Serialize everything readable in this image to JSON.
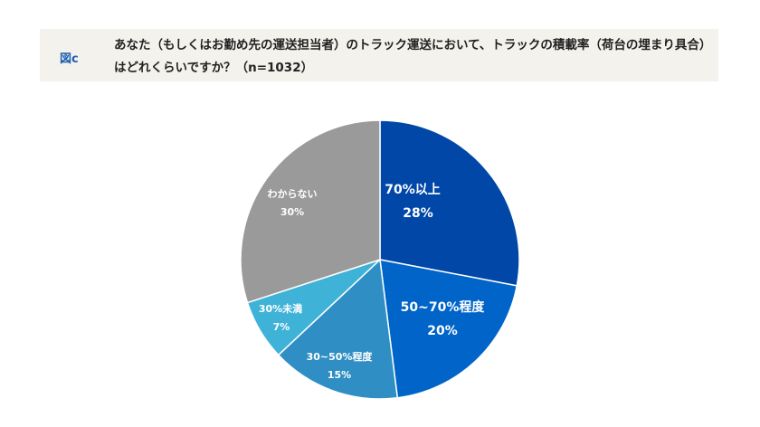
{
  "header": {
    "figure_label": "図c",
    "question": "あなた（もしくはお勤め先の運送担当者）のトラック運送において、トラックの積載率（荷台の埋まり具合）はどれくらいですか？（n=1032）"
  },
  "chart_data": {
    "type": "pie",
    "title": "あなた（もしくはお勤め先の運送担当者）のトラック運送において、トラックの積載率（荷台の埋まり具合）はどれくらいですか？（n=1032）",
    "n": 1032,
    "categories": [
      "70%以上",
      "50~70%程度",
      "30~50%程度",
      "30%未満",
      "わからない"
    ],
    "values": [
      28,
      20,
      15,
      7,
      30
    ],
    "unit": "%",
    "colors": [
      "#0047a8",
      "#0064c8",
      "#2f8fc4",
      "#3fb2d8",
      "#9a9a9a"
    ],
    "start_angle": "12 o'clock, clockwise",
    "legend": "none (labels inside slices)"
  },
  "labels": {
    "s0": {
      "name": "70%以上",
      "pct": "28%"
    },
    "s1": {
      "name": "50~70%程度",
      "pct": "20%"
    },
    "s2": {
      "name": "30~50%程度",
      "pct": "15%"
    },
    "s3": {
      "name": "30%未満",
      "pct": "7%"
    },
    "s4": {
      "name": "わからない",
      "pct": "30%"
    }
  }
}
